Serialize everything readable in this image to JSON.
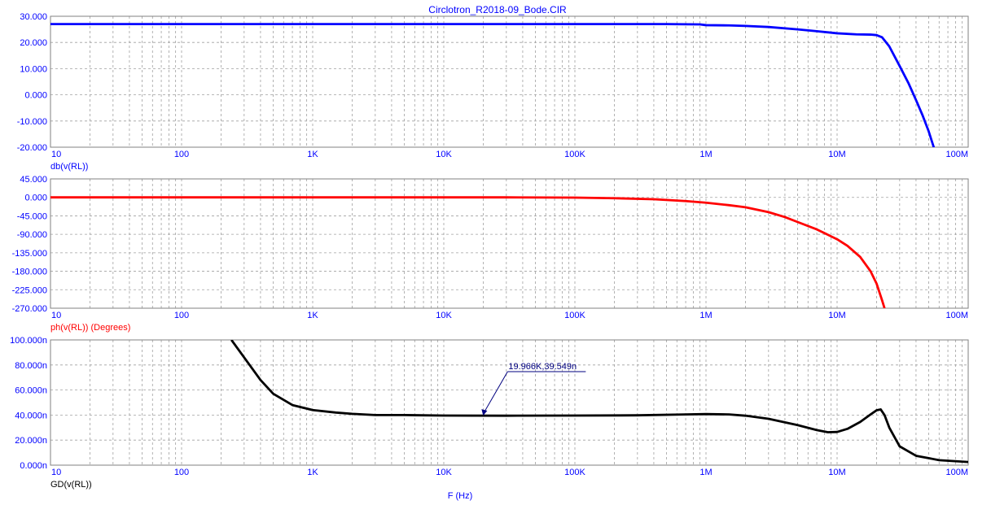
{
  "window": {
    "title": "Circlotron_R2018-09_Bode.CIR",
    "xaxis_title": "F (Hz)"
  },
  "colors": {
    "magnitude": "#0000ff",
    "phase": "#ff0000",
    "group_delay": "#000000",
    "tick_text": "#0000ff",
    "grid": "#a0a0a0"
  },
  "chart_data": [
    {
      "type": "line",
      "name": "magnitude",
      "ylabel": "db(v(RL))",
      "xscale": "log",
      "xlim": [
        10,
        100000000
      ],
      "ylim": [
        -20,
        30
      ],
      "x_ticks": [
        10,
        100,
        1000,
        10000,
        100000,
        1000000,
        10000000,
        100000000
      ],
      "x_tick_labels": [
        "10",
        "100",
        "1K",
        "10K",
        "100K",
        "1M",
        "10M",
        "100M"
      ],
      "y_ticks": [
        30,
        20,
        10,
        0,
        -10,
        -20
      ],
      "y_tick_labels": [
        "30.000",
        "20.000",
        "10.000",
        "0.000",
        "-10.000",
        "-20.000"
      ],
      "grid": true,
      "series": [
        {
          "color": "#0000ff",
          "x": [
            10,
            100,
            1000,
            10000,
            100000,
            500000,
            900000,
            1000000,
            1500000,
            2000000,
            3000000,
            5000000,
            7000000,
            10000000,
            14000000,
            18000000,
            20000000,
            22000000,
            25000000,
            30000000,
            35000000,
            40000000,
            45000000,
            50000000,
            55000000
          ],
          "y": [
            27,
            27,
            27,
            27,
            27,
            27,
            26.9,
            26.6,
            26.5,
            26.3,
            25.9,
            25,
            24.3,
            23.5,
            23.1,
            23,
            22.8,
            22,
            18.5,
            11,
            4.5,
            -2,
            -8,
            -14,
            -20.5
          ]
        }
      ]
    },
    {
      "type": "line",
      "name": "phase",
      "ylabel": "ph(v(RL)) (Degrees)",
      "xscale": "log",
      "xlim": [
        10,
        100000000
      ],
      "ylim": [
        -270,
        45
      ],
      "x_ticks": [
        10,
        100,
        1000,
        10000,
        100000,
        1000000,
        10000000,
        100000000
      ],
      "x_tick_labels": [
        "10",
        "100",
        "1K",
        "10K",
        "100K",
        "1M",
        "10M",
        "100M"
      ],
      "y_ticks": [
        45,
        0,
        -45,
        -90,
        -135,
        -180,
        -225,
        -270
      ],
      "y_tick_labels": [
        "45.000",
        "0.000",
        "-45.000",
        "-90.000",
        "-135.000",
        "-180.000",
        "-225.000",
        "-270.000"
      ],
      "grid": true,
      "series": [
        {
          "color": "#ff0000",
          "x": [
            10,
            1000,
            10000,
            30000,
            100000,
            200000,
            400000,
            700000,
            1000000,
            1500000,
            2000000,
            3000000,
            4000000,
            5000000,
            7000000,
            10000000,
            12000000,
            15000000,
            18000000,
            20000000,
            22000000,
            23000000
          ],
          "y": [
            0,
            0,
            0,
            0,
            -0.5,
            -2,
            -4.5,
            -9,
            -13,
            -19,
            -24,
            -36,
            -48,
            -60,
            -78,
            -102,
            -118,
            -145,
            -180,
            -210,
            -250,
            -270
          ]
        }
      ]
    },
    {
      "type": "line",
      "name": "group-delay",
      "ylabel": "GD(v(RL))",
      "xlabel": "F (Hz)",
      "xscale": "log",
      "xlim": [
        10,
        100000000
      ],
      "ylim": [
        0,
        100
      ],
      "x_ticks": [
        10,
        100,
        1000,
        10000,
        100000,
        1000000,
        10000000,
        100000000
      ],
      "x_tick_labels": [
        "10",
        "100",
        "1K",
        "10K",
        "100K",
        "1M",
        "10M",
        "100M"
      ],
      "y_ticks": [
        100,
        80,
        60,
        40,
        20,
        0
      ],
      "y_tick_labels": [
        "100.000n",
        "80.000n",
        "60.000n",
        "40.000n",
        "20.000n",
        "0.000n"
      ],
      "grid": true,
      "annotation": {
        "text": "19.966K,39.549n",
        "x": 19966,
        "y": 39.549
      },
      "series": [
        {
          "color": "#000000",
          "x": [
            240,
            300,
            400,
            500,
            700,
            1000,
            1500,
            2000,
            3000,
            5000,
            10000,
            30000,
            100000,
            300000,
            700000,
            1000000,
            1500000,
            2000000,
            3000000,
            5000000,
            7000000,
            8500000,
            10000000,
            12000000,
            15000000,
            18000000,
            20000000,
            21500000,
            23000000,
            25000000,
            30000000,
            40000000,
            60000000,
            100000000
          ],
          "y": [
            100,
            86,
            68,
            57,
            48,
            44,
            42,
            41,
            40,
            40,
            39.6,
            39.5,
            39.6,
            39.8,
            40.5,
            40.8,
            40.5,
            39.5,
            37,
            32,
            28,
            26.3,
            26.5,
            29,
            34.5,
            40.5,
            43.8,
            44.5,
            40,
            30,
            15,
            7.5,
            4,
            2.5
          ]
        }
      ]
    }
  ]
}
